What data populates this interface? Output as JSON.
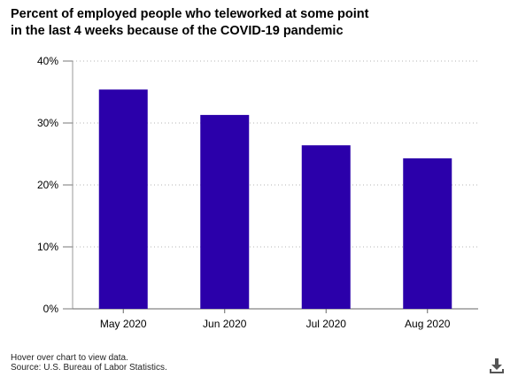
{
  "chart_data": {
    "type": "bar",
    "title": "Percent of employed people who teleworked at some point in the last 4 weeks because of the COVID-19 pandemic",
    "xlabel": "",
    "ylabel": "",
    "categories": [
      "May 2020",
      "Jun 2020",
      "Jul 2020",
      "Aug 2020"
    ],
    "values": [
      35.4,
      31.3,
      26.4,
      24.3
    ],
    "ylim": [
      0,
      40
    ],
    "yticks": [
      0,
      10,
      20,
      30,
      40
    ],
    "ytick_labels": [
      "0%",
      "10%",
      "20%",
      "30%",
      "40%"
    ],
    "grid": "horizontal dotted",
    "bar_color": "#2b00aa"
  },
  "footer": {
    "hover_note": "Hover over chart to view data.",
    "source_note": "Source: U.S. Bureau of Labor Statistics."
  },
  "icons": {
    "download": "download-icon"
  }
}
